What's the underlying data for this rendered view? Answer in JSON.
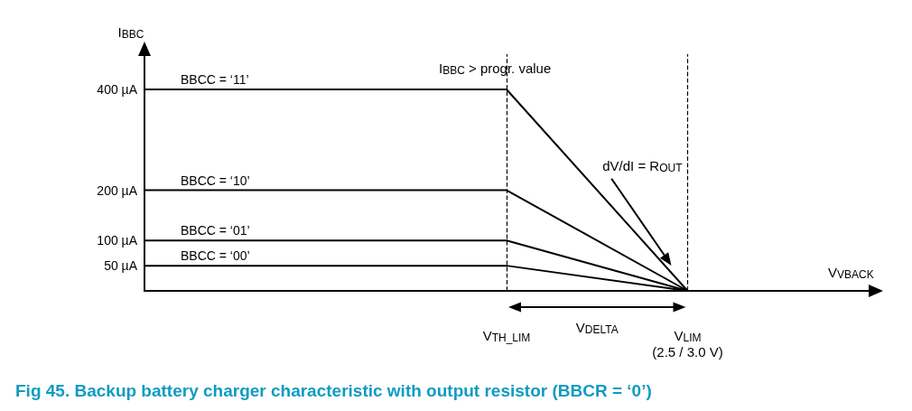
{
  "chart_data": {
    "type": "line",
    "title": "Fig 45. Backup battery charger characteristic with output resistor (BBCR = ‘0’)",
    "xlabel": "V$_{VBACK}$",
    "ylabel": "I$_{BBC}$",
    "categories": [
      null,
      null,
      "V$_{TH_LIM}$",
      "V$_{LIM}$\n(2.5 / 3.0 V)",
      null
    ],
    "series": [
      {
        "name": "BBCC = ‘11’",
        "color": "#000000",
        "values": [
          400,
          400,
          400,
          0,
          null
        ]
      },
      {
        "name": "BBCC = ‘10’",
        "color": "#000000",
        "values": [
          200,
          200,
          200,
          0,
          null
        ]
      },
      {
        "name": "BBCC = ‘01’",
        "color": "#000000",
        "values": [
          100,
          100,
          100,
          0,
          null
        ]
      },
      {
        "name": "BBCC = ‘00’",
        "color": "#000000",
        "values": [
          50,
          50,
          50,
          0,
          null
        ]
      }
    ],
    "ylim": [
      0,
      470
    ],
    "yticks": [
      {
        "value": 50,
        "label": "50 µA"
      },
      {
        "value": 100,
        "label": "100 µA"
      },
      {
        "value": 200,
        "label": "200 µA"
      },
      {
        "value": 400,
        "label": "400 µA"
      }
    ],
    "ref_lines": [
      {
        "axis": "x",
        "value": "V$_{TH_LIM}$",
        "color": "#000000",
        "line_style": "dashed"
      },
      {
        "axis": "x",
        "value": "V$_{LIM}$\n(2.5 / 3.0 V)",
        "color": "#000000",
        "line_style": "dashed"
      }
    ],
    "annotations": [
      "I$_{BBC}$ > progr. value",
      "dV/dI = R$_{OUT}$",
      "V$_{DELTA}$"
    ],
    "grid": false,
    "legend": false,
    "marker": "none",
    "line_style": "solid"
  }
}
